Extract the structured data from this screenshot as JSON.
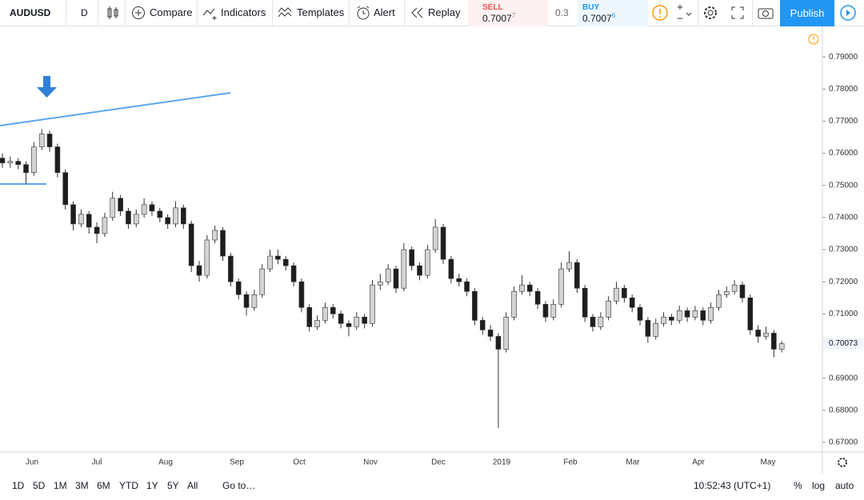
{
  "toolbar": {
    "symbol": "AUDUSD",
    "interval": "D",
    "buttons": [
      "Compare",
      "Indicators",
      "Templates",
      "Alert",
      "Replay"
    ],
    "sell": {
      "label": "SELL",
      "price": "0.7007",
      "pip": "7"
    },
    "spread": "0.3",
    "buy": {
      "label": "BUY",
      "price": "0.7007",
      "pip": "6"
    },
    "publish": "Publish"
  },
  "chart_data": {
    "type": "candlestick",
    "ylim": [
      0.667,
      0.799
    ],
    "yticks": [
      {
        "value": 0.79,
        "label": "0.79000"
      },
      {
        "value": 0.78,
        "label": "0.78000"
      },
      {
        "value": 0.77,
        "label": "0.77000"
      },
      {
        "value": 0.76,
        "label": "0.76000"
      },
      {
        "value": 0.75,
        "label": "0.75000"
      },
      {
        "value": 0.74,
        "label": "0.74000"
      },
      {
        "value": 0.73,
        "label": "0.73000"
      },
      {
        "value": 0.72,
        "label": "0.72000"
      },
      {
        "value": 0.71,
        "label": "0.71000"
      },
      {
        "value": 0.69,
        "label": "0.69000"
      },
      {
        "value": 0.68,
        "label": "0.68000"
      },
      {
        "value": 0.67,
        "label": "0.67000"
      }
    ],
    "last_price": 0.70073,
    "time_labels": [
      "Jun",
      "Jul",
      "Aug",
      "Sep",
      "Oct",
      "Nov",
      "Dec",
      "2019",
      "Feb",
      "Mar",
      "Apr",
      "May"
    ],
    "grid": false,
    "up_color": "#d4d4d4",
    "down_color": "#1e1e1e",
    "ohlc": [
      [
        0.7585,
        0.76,
        0.7555,
        0.757
      ],
      [
        0.757,
        0.759,
        0.7555,
        0.7575
      ],
      [
        0.7575,
        0.7585,
        0.755,
        0.7565
      ],
      [
        0.7565,
        0.7575,
        0.7505,
        0.754
      ],
      [
        0.754,
        0.7635,
        0.753,
        0.762
      ],
      [
        0.762,
        0.7675,
        0.761,
        0.766
      ],
      [
        0.766,
        0.767,
        0.7605,
        0.762
      ],
      [
        0.762,
        0.763,
        0.7525,
        0.754
      ],
      [
        0.754,
        0.755,
        0.7425,
        0.744
      ],
      [
        0.744,
        0.745,
        0.736,
        0.738
      ],
      [
        0.738,
        0.7425,
        0.737,
        0.741
      ],
      [
        0.741,
        0.742,
        0.735,
        0.737
      ],
      [
        0.737,
        0.7385,
        0.732,
        0.735
      ],
      [
        0.735,
        0.7415,
        0.734,
        0.74
      ],
      [
        0.74,
        0.748,
        0.739,
        0.746
      ],
      [
        0.746,
        0.747,
        0.7405,
        0.742
      ],
      [
        0.742,
        0.743,
        0.7365,
        0.738
      ],
      [
        0.738,
        0.7425,
        0.737,
        0.741
      ],
      [
        0.741,
        0.746,
        0.74,
        0.744
      ],
      [
        0.744,
        0.745,
        0.7405,
        0.742
      ],
      [
        0.742,
        0.743,
        0.7385,
        0.74
      ],
      [
        0.74,
        0.741,
        0.7365,
        0.738
      ],
      [
        0.738,
        0.745,
        0.737,
        0.743
      ],
      [
        0.743,
        0.744,
        0.7365,
        0.738
      ],
      [
        0.738,
        0.739,
        0.723,
        0.725
      ],
      [
        0.725,
        0.7265,
        0.72,
        0.722
      ],
      [
        0.722,
        0.7345,
        0.721,
        0.733
      ],
      [
        0.733,
        0.7375,
        0.732,
        0.736
      ],
      [
        0.736,
        0.737,
        0.7265,
        0.728
      ],
      [
        0.728,
        0.729,
        0.7185,
        0.72
      ],
      [
        0.72,
        0.721,
        0.7145,
        0.716
      ],
      [
        0.716,
        0.717,
        0.7095,
        0.712
      ],
      [
        0.712,
        0.7175,
        0.711,
        0.716
      ],
      [
        0.716,
        0.7255,
        0.715,
        0.724
      ],
      [
        0.724,
        0.73,
        0.723,
        0.728
      ],
      [
        0.728,
        0.73,
        0.7255,
        0.727
      ],
      [
        0.727,
        0.728,
        0.7235,
        0.725
      ],
      [
        0.725,
        0.726,
        0.7185,
        0.72
      ],
      [
        0.72,
        0.721,
        0.7105,
        0.712
      ],
      [
        0.712,
        0.713,
        0.7045,
        0.706
      ],
      [
        0.706,
        0.7095,
        0.705,
        0.708
      ],
      [
        0.708,
        0.7135,
        0.707,
        0.712
      ],
      [
        0.712,
        0.713,
        0.7085,
        0.71
      ],
      [
        0.71,
        0.711,
        0.7055,
        0.707
      ],
      [
        0.707,
        0.708,
        0.703,
        0.706
      ],
      [
        0.706,
        0.7105,
        0.705,
        0.709
      ],
      [
        0.709,
        0.71,
        0.7055,
        0.707
      ],
      [
        0.707,
        0.7205,
        0.706,
        0.719
      ],
      [
        0.719,
        0.7225,
        0.7175,
        0.72
      ],
      [
        0.72,
        0.7255,
        0.719,
        0.724
      ],
      [
        0.724,
        0.725,
        0.7165,
        0.718
      ],
      [
        0.718,
        0.732,
        0.717,
        0.73
      ],
      [
        0.73,
        0.731,
        0.7235,
        0.725
      ],
      [
        0.725,
        0.726,
        0.7205,
        0.722
      ],
      [
        0.722,
        0.7315,
        0.721,
        0.73
      ],
      [
        0.73,
        0.7395,
        0.729,
        0.737
      ],
      [
        0.737,
        0.738,
        0.7255,
        0.727
      ],
      [
        0.727,
        0.728,
        0.7195,
        0.721
      ],
      [
        0.721,
        0.7225,
        0.7185,
        0.72
      ],
      [
        0.72,
        0.721,
        0.7155,
        0.717
      ],
      [
        0.717,
        0.718,
        0.7065,
        0.708
      ],
      [
        0.708,
        0.709,
        0.7035,
        0.705
      ],
      [
        0.705,
        0.7065,
        0.7015,
        0.703
      ],
      [
        0.703,
        0.704,
        0.6745,
        0.699
      ],
      [
        0.699,
        0.7105,
        0.698,
        0.709
      ],
      [
        0.709,
        0.7185,
        0.708,
        0.717
      ],
      [
        0.717,
        0.722,
        0.716,
        0.719
      ],
      [
        0.719,
        0.72,
        0.7155,
        0.717
      ],
      [
        0.717,
        0.718,
        0.7115,
        0.713
      ],
      [
        0.713,
        0.714,
        0.7075,
        0.709
      ],
      [
        0.709,
        0.7145,
        0.708,
        0.713
      ],
      [
        0.713,
        0.726,
        0.712,
        0.724
      ],
      [
        0.724,
        0.7295,
        0.723,
        0.726
      ],
      [
        0.726,
        0.727,
        0.7165,
        0.718
      ],
      [
        0.718,
        0.719,
        0.7075,
        0.709
      ],
      [
        0.709,
        0.71,
        0.7045,
        0.706
      ],
      [
        0.706,
        0.7105,
        0.705,
        0.709
      ],
      [
        0.709,
        0.7155,
        0.708,
        0.714
      ],
      [
        0.714,
        0.72,
        0.713,
        0.718
      ],
      [
        0.718,
        0.719,
        0.7135,
        0.715
      ],
      [
        0.715,
        0.716,
        0.7105,
        0.712
      ],
      [
        0.712,
        0.713,
        0.7065,
        0.708
      ],
      [
        0.708,
        0.709,
        0.701,
        0.703
      ],
      [
        0.703,
        0.7085,
        0.702,
        0.707
      ],
      [
        0.707,
        0.7105,
        0.706,
        0.709
      ],
      [
        0.709,
        0.71,
        0.7065,
        0.708
      ],
      [
        0.708,
        0.7125,
        0.707,
        0.711
      ],
      [
        0.711,
        0.712,
        0.7075,
        0.709
      ],
      [
        0.709,
        0.7125,
        0.708,
        0.711
      ],
      [
        0.711,
        0.712,
        0.7065,
        0.708
      ],
      [
        0.708,
        0.7135,
        0.707,
        0.712
      ],
      [
        0.712,
        0.7175,
        0.711,
        0.716
      ],
      [
        0.716,
        0.7185,
        0.715,
        0.717
      ],
      [
        0.717,
        0.7205,
        0.716,
        0.719
      ],
      [
        0.719,
        0.72,
        0.7135,
        0.715
      ],
      [
        0.715,
        0.716,
        0.7035,
        0.705
      ],
      [
        0.705,
        0.7065,
        0.701,
        0.703
      ],
      [
        0.703,
        0.706,
        0.702,
        0.704
      ],
      [
        0.704,
        0.705,
        0.6965,
        0.699
      ],
      [
        0.699,
        0.7015,
        0.698,
        0.70073
      ]
    ]
  },
  "bottom_bar": {
    "ranges": [
      "1D",
      "5D",
      "1M",
      "3M",
      "6M",
      "YTD",
      "1Y",
      "5Y",
      "All"
    ],
    "goto": "Go to…",
    "clock": "10:52:43 (UTC+1)",
    "percent": "%",
    "log": "log",
    "auto": "auto"
  }
}
